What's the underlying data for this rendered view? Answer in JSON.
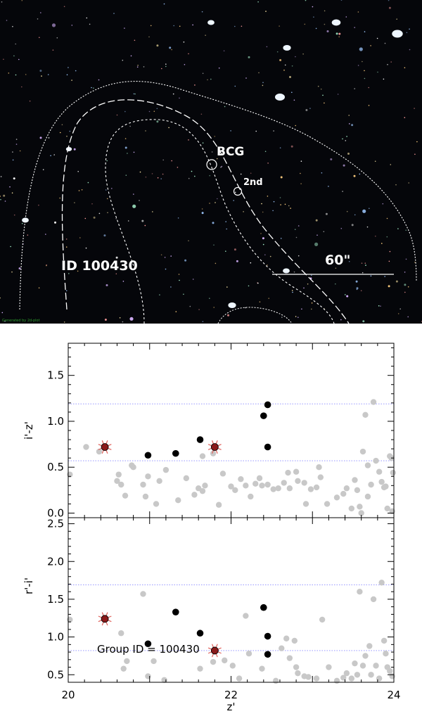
{
  "image": {
    "field_label": "ID 100430",
    "bcg_label": "BCG",
    "second_label": "2nd",
    "scale_label": "60\"",
    "credit": "Generated by 2d-plot"
  },
  "colors": {
    "sky_background": "#05060a",
    "contour": "#ffffff",
    "field_point": "#c8c8c8",
    "member_point": "#000000",
    "bcg_marker": "#8b1a1a",
    "bcg_rays": "#e0605a",
    "limit_line": "#8888ff"
  },
  "chart_data": [
    {
      "type": "scatter",
      "title": "",
      "xlabel": "",
      "ylabel": "i'-z'",
      "xlim": [
        20,
        24
      ],
      "ylim": [
        -0.05,
        1.85
      ],
      "yticks": [
        "0.0",
        "0.5",
        "1.0",
        "1.5"
      ],
      "ytick_values": [
        0.0,
        0.5,
        1.0,
        1.5
      ],
      "xticks_visible": false,
      "limit_lines": [
        0.57,
        1.19
      ],
      "field_points": [
        [
          20.02,
          0.42
        ],
        [
          20.22,
          0.72
        ],
        [
          20.38,
          0.67
        ],
        [
          20.6,
          0.35
        ],
        [
          20.62,
          0.42
        ],
        [
          20.65,
          0.31
        ],
        [
          20.7,
          0.19
        ],
        [
          20.78,
          0.52
        ],
        [
          20.8,
          0.5
        ],
        [
          20.92,
          0.31
        ],
        [
          20.95,
          0.18
        ],
        [
          20.98,
          0.4
        ],
        [
          21.08,
          0.1
        ],
        [
          21.12,
          0.35
        ],
        [
          21.2,
          0.47
        ],
        [
          21.35,
          0.14
        ],
        [
          21.45,
          0.38
        ],
        [
          21.55,
          0.2
        ],
        [
          21.6,
          0.27
        ],
        [
          21.65,
          0.24
        ],
        [
          21.65,
          0.62
        ],
        [
          21.68,
          0.3
        ],
        [
          21.78,
          0.65
        ],
        [
          21.85,
          0.09
        ],
        [
          21.9,
          0.43
        ],
        [
          22.0,
          0.29
        ],
        [
          22.05,
          0.25
        ],
        [
          22.12,
          0.37
        ],
        [
          22.18,
          0.3
        ],
        [
          22.24,
          0.18
        ],
        [
          22.3,
          0.32
        ],
        [
          22.35,
          0.38
        ],
        [
          22.38,
          0.3
        ],
        [
          22.45,
          0.31
        ],
        [
          22.52,
          0.26
        ],
        [
          22.58,
          0.27
        ],
        [
          22.65,
          0.33
        ],
        [
          22.7,
          0.44
        ],
        [
          22.72,
          0.27
        ],
        [
          22.8,
          0.45
        ],
        [
          22.82,
          0.35
        ],
        [
          22.9,
          0.33
        ],
        [
          22.92,
          0.1
        ],
        [
          22.98,
          0.26
        ],
        [
          23.05,
          0.28
        ],
        [
          23.08,
          0.5
        ],
        [
          23.1,
          0.39
        ],
        [
          23.18,
          0.1
        ],
        [
          23.3,
          0.17
        ],
        [
          23.38,
          0.21
        ],
        [
          23.42,
          0.27
        ],
        [
          23.48,
          0.05
        ],
        [
          23.52,
          0.36
        ],
        [
          23.55,
          0.25
        ],
        [
          23.58,
          0.07
        ],
        [
          23.62,
          0.67
        ],
        [
          23.65,
          1.07
        ],
        [
          23.68,
          0.18
        ],
        [
          23.72,
          0.31
        ],
        [
          23.75,
          1.21
        ],
        [
          23.78,
          0.57
        ],
        [
          23.82,
          0.45
        ],
        [
          23.85,
          0.34
        ],
        [
          23.88,
          0.28
        ],
        [
          23.9,
          0.29
        ],
        [
          23.92,
          0.05
        ],
        [
          23.95,
          0.62
        ],
        [
          23.97,
          0.6
        ],
        [
          23.99,
          0.44
        ],
        [
          23.68,
          0.52
        ],
        [
          23.6,
          0.0
        ],
        [
          23.98,
          0.02
        ]
      ],
      "member_points": [
        [
          20.98,
          0.63
        ],
        [
          21.32,
          0.65
        ],
        [
          21.62,
          0.8
        ],
        [
          22.4,
          1.06
        ],
        [
          22.45,
          1.18
        ],
        [
          22.45,
          0.72
        ]
      ],
      "bcg_points": [
        [
          20.45,
          0.72
        ],
        [
          21.8,
          0.72
        ]
      ]
    },
    {
      "type": "scatter",
      "title": "",
      "xlabel": "z'",
      "ylabel": "r'-i'",
      "xlim": [
        20,
        24
      ],
      "ylim": [
        0.4,
        2.58
      ],
      "xticks": [
        "20",
        "22",
        "24"
      ],
      "xtick_values": [
        20,
        22,
        24
      ],
      "yticks": [
        "0.5",
        "1.0",
        "1.5",
        "2.0",
        "2.5"
      ],
      "ytick_values": [
        0.5,
        1.0,
        1.5,
        2.0,
        2.5
      ],
      "limit_lines": [
        0.82,
        1.69
      ],
      "annotation": "Group ID =  100430",
      "field_points": [
        [
          20.02,
          1.23
        ],
        [
          20.65,
          1.05
        ],
        [
          20.68,
          0.58
        ],
        [
          20.72,
          0.68
        ],
        [
          20.92,
          1.57
        ],
        [
          20.98,
          0.48
        ],
        [
          21.05,
          0.68
        ],
        [
          21.18,
          0.43
        ],
        [
          21.62,
          0.58
        ],
        [
          21.78,
          0.67
        ],
        [
          21.92,
          0.69
        ],
        [
          22.02,
          0.62
        ],
        [
          22.1,
          0.45
        ],
        [
          22.18,
          1.28
        ],
        [
          22.22,
          0.78
        ],
        [
          22.38,
          0.58
        ],
        [
          22.55,
          0.42
        ],
        [
          22.62,
          0.85
        ],
        [
          22.68,
          0.98
        ],
        [
          22.72,
          0.72
        ],
        [
          22.78,
          0.95
        ],
        [
          22.8,
          0.6
        ],
        [
          22.82,
          0.52
        ],
        [
          22.9,
          0.48
        ],
        [
          22.95,
          0.47
        ],
        [
          23.05,
          0.45
        ],
        [
          23.12,
          1.23
        ],
        [
          23.2,
          0.6
        ],
        [
          23.3,
          0.42
        ],
        [
          23.38,
          0.46
        ],
        [
          23.42,
          0.52
        ],
        [
          23.48,
          0.45
        ],
        [
          23.52,
          0.65
        ],
        [
          23.55,
          0.5
        ],
        [
          23.58,
          1.6
        ],
        [
          23.62,
          0.62
        ],
        [
          23.65,
          0.75
        ],
        [
          23.7,
          0.88
        ],
        [
          23.72,
          0.5
        ],
        [
          23.75,
          1.5
        ],
        [
          23.78,
          0.62
        ],
        [
          23.82,
          0.45
        ],
        [
          23.85,
          1.72
        ],
        [
          23.88,
          0.95
        ],
        [
          23.9,
          0.78
        ],
        [
          23.92,
          0.6
        ],
        [
          23.95,
          0.55
        ],
        [
          23.98,
          0.48
        ]
      ],
      "member_points": [
        [
          20.98,
          0.91
        ],
        [
          21.32,
          1.33
        ],
        [
          21.62,
          1.05
        ],
        [
          22.4,
          1.39
        ],
        [
          22.45,
          1.01
        ],
        [
          22.45,
          0.77
        ]
      ],
      "bcg_points": [
        [
          20.45,
          1.24
        ],
        [
          21.8,
          0.82
        ]
      ]
    }
  ]
}
